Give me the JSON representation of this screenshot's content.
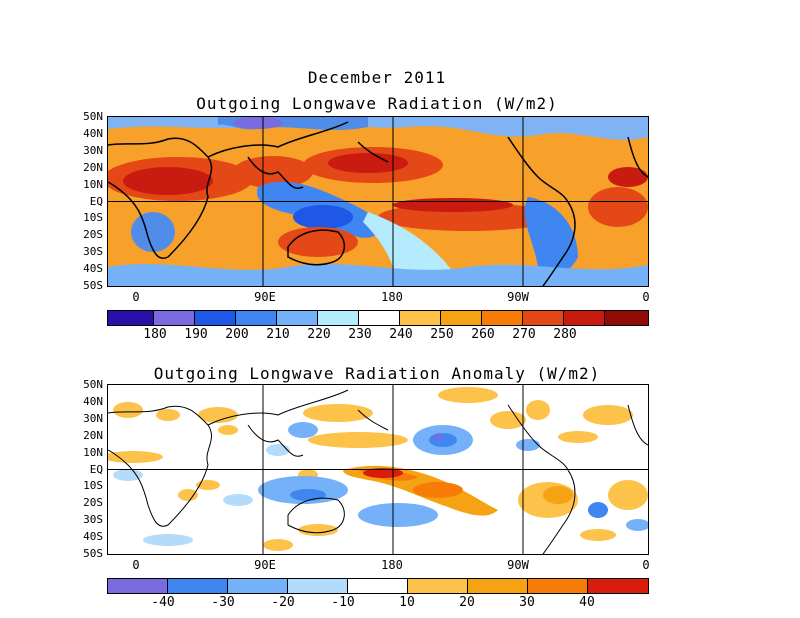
{
  "header": {
    "month_title": "December 2011"
  },
  "panels": [
    {
      "title": "Outgoing Longwave Radiation (W/m2)",
      "lat_labels": [
        "50N",
        "40N",
        "30N",
        "20N",
        "10N",
        "EQ",
        "10S",
        "20S",
        "30S",
        "40S",
        "50S"
      ],
      "lon_labels": [
        "0",
        "90E",
        "180",
        "90W",
        "0"
      ],
      "colorbar": {
        "colors": [
          "#2a0fa8",
          "#7a6be0",
          "#1f57e6",
          "#3f86f0",
          "#74b1f8",
          "#b4ecfd",
          "#ffffff",
          "#fcc24a",
          "#f5a213",
          "#f77c07",
          "#e44816",
          "#c91b0f",
          "#920b06"
        ],
        "labels": [
          "180",
          "190",
          "200",
          "210",
          "220",
          "230",
          "240",
          "250",
          "260",
          "270",
          "280"
        ]
      }
    },
    {
      "title": "Outgoing Longwave Radiation Anomaly (W/m2)",
      "lat_labels": [
        "50N",
        "40N",
        "30N",
        "20N",
        "10N",
        "EQ",
        "10S",
        "20S",
        "30S",
        "40S",
        "50S"
      ],
      "lon_labels": [
        "0",
        "90E",
        "180",
        "90W",
        "0"
      ],
      "colorbar": {
        "colors": [
          "#7a6be0",
          "#3f86f0",
          "#74b1f8",
          "#b4dcfa",
          "#ffffff",
          "#fcc24a",
          "#f5a213",
          "#f77c07",
          "#d81d0c"
        ],
        "labels": [
          "-40",
          "-30",
          "-20",
          "-10",
          "10",
          "20",
          "30",
          "40"
        ]
      }
    }
  ]
}
